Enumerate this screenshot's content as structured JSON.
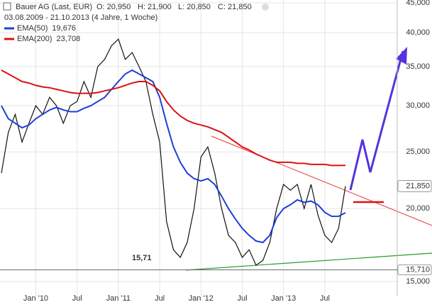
{
  "chart_data": {
    "type": "line",
    "title": "Bauer AG (Last, EUR)",
    "quote": {
      "open": "O: 20,950",
      "high": "H: 21,900",
      "low": "L: 20,850",
      "close": "C: 21,850"
    },
    "subtitle": "03.08.2009 - 21.10.2013 (4 Jahre, 1 Woche)",
    "x": [
      "2009-08",
      "2009-09",
      "2009-10",
      "2009-11",
      "2009-12",
      "2010-01",
      "2010-02",
      "2010-03",
      "2010-04",
      "2010-05",
      "2010-06",
      "2010-07",
      "2010-08",
      "2010-09",
      "2010-10",
      "2010-11",
      "2010-12",
      "2011-01",
      "2011-02",
      "2011-03",
      "2011-04",
      "2011-05",
      "2011-06",
      "2011-07",
      "2011-08",
      "2011-09",
      "2011-10",
      "2011-11",
      "2011-12",
      "2012-01",
      "2012-02",
      "2012-03",
      "2012-04",
      "2012-05",
      "2012-06",
      "2012-07",
      "2012-08",
      "2012-09",
      "2012-10",
      "2012-11",
      "2012-12",
      "2013-01",
      "2013-02",
      "2013-03",
      "2013-04",
      "2013-05",
      "2013-06",
      "2013-07",
      "2013-08",
      "2013-09",
      "2013-10"
    ],
    "series": [
      {
        "name": "Bauer AG",
        "color": "#111111",
        "values": [
          23000,
          27000,
          29000,
          26000,
          28000,
          30000,
          29000,
          31000,
          30000,
          28000,
          30000,
          30500,
          33000,
          31000,
          35000,
          36000,
          38000,
          39000,
          36000,
          37000,
          35000,
          33000,
          29000,
          26000,
          19000,
          17000,
          16500,
          17500,
          20000,
          24500,
          25500,
          23000,
          20000,
          18000,
          17500,
          16500,
          17000,
          16000,
          16300,
          17500,
          20000,
          22000,
          21500,
          22000,
          20000,
          22000,
          19500,
          18000,
          17500,
          18500,
          21850
        ]
      },
      {
        "name": "EMA(50)",
        "value_label": "19,676",
        "color": "#1f3fd6",
        "values": [
          30000,
          28500,
          28000,
          27500,
          27800,
          28500,
          29000,
          29500,
          29800,
          29500,
          29300,
          29300,
          29700,
          30000,
          30500,
          31000,
          32000,
          33000,
          34000,
          34500,
          34000,
          33500,
          33000,
          31000,
          28000,
          25500,
          24000,
          23000,
          22500,
          22300,
          22500,
          22000,
          21000,
          20000,
          19200,
          18500,
          18000,
          17600,
          17500,
          18000,
          19300,
          20000,
          20300,
          20700,
          20500,
          20600,
          20300,
          19700,
          19400,
          19400,
          19676
        ]
      },
      {
        "name": "EMA(200)",
        "value_label": "23,708",
        "color": "#dd1111",
        "values": [
          34500,
          34000,
          33500,
          33000,
          32800,
          32500,
          32300,
          32200,
          32000,
          31800,
          31600,
          31500,
          31500,
          31500,
          31600,
          31800,
          32000,
          32200,
          32500,
          32800,
          33000,
          33000,
          32500,
          31800,
          30500,
          29500,
          28800,
          28300,
          28000,
          27800,
          27600,
          27300,
          27000,
          26500,
          26000,
          25500,
          25200,
          24800,
          24500,
          24200,
          24000,
          24000,
          24000,
          23900,
          23900,
          23800,
          23800,
          23800,
          23700,
          23700,
          23708
        ]
      }
    ],
    "last_price": {
      "value": 21850,
      "label": "21,850"
    },
    "low_line": {
      "value": 15710,
      "label": "15,710"
    },
    "low_annotation": "15,71",
    "log_scale": true,
    "grid": true,
    "ylim": [
      14150,
      45500
    ],
    "yticks": [
      {
        "value": 15000,
        "label": "15,000"
      },
      {
        "value": 20000,
        "label": "20,000"
      },
      {
        "value": 25000,
        "label": "25,000"
      },
      {
        "value": 30000,
        "label": "30,000"
      },
      {
        "value": 35000,
        "label": "35,000"
      },
      {
        "value": 40000,
        "label": "40,000"
      },
      {
        "value": 45000,
        "label": "45,000"
      }
    ],
    "xticks": [
      {
        "value": "2010-01",
        "label": "Jan '10"
      },
      {
        "value": "2010-07",
        "label": "Jul"
      },
      {
        "value": "2011-01",
        "label": "Jan '11"
      },
      {
        "value": "2011-07",
        "label": "Jul"
      },
      {
        "value": "2012-01",
        "label": "Jan '12"
      },
      {
        "value": "2012-07",
        "label": "Jul"
      },
      {
        "value": "2013-01",
        "label": "Jan '13"
      },
      {
        "value": "2013-07",
        "label": "Jul"
      }
    ]
  }
}
